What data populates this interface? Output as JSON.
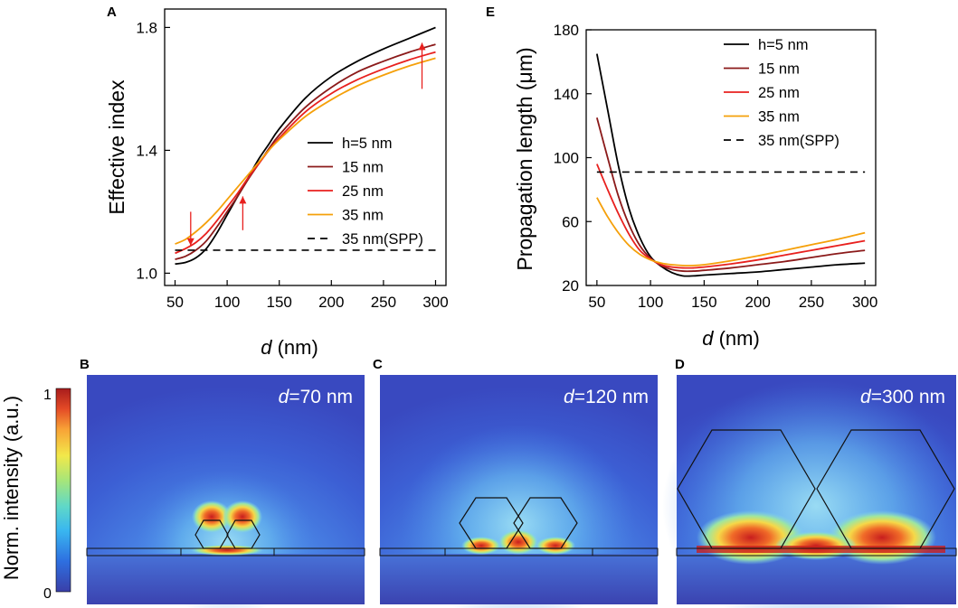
{
  "panel_letters": {
    "a": "A",
    "b": "B",
    "c": "C",
    "d": "D",
    "e": "E"
  },
  "colors": {
    "series": [
      "#000000",
      "#8b1a1a",
      "#e8201e",
      "#f5a00a",
      "#000000"
    ],
    "arrow": "#e8201e",
    "colormap": [
      "#3a3fa8",
      "#2e6fe0",
      "#39b6f0",
      "#5fd8c8",
      "#a8e678",
      "#f2e84a",
      "#f8a236",
      "#e44a26",
      "#a81c1c"
    ]
  },
  "colorbar": {
    "label": "Norm. intensity (a.u.)",
    "max_label": "1",
    "min_label": "0"
  },
  "chart_data": [
    {
      "panel": "A",
      "type": "line",
      "title": "",
      "xlabel_italic": "d",
      "xlabel_rest": " (nm)",
      "ylabel": "Effective index",
      "xlim": [
        40,
        310
      ],
      "ylim": [
        0.96,
        1.86
      ],
      "xticks": [
        50,
        100,
        150,
        200,
        250,
        300
      ],
      "yticks": [
        1.0,
        1.4,
        1.8
      ],
      "ytick_labels": [
        "1.0",
        "1.4",
        "1.8"
      ],
      "legend_position": "center-right",
      "series": [
        {
          "name": "h=5 nm",
          "style": "solid",
          "x": [
            50,
            60,
            70,
            80,
            90,
            100,
            110,
            120,
            130,
            140,
            150,
            175,
            200,
            225,
            250,
            275,
            300
          ],
          "values": [
            1.03,
            1.035,
            1.05,
            1.08,
            1.13,
            1.19,
            1.25,
            1.31,
            1.37,
            1.42,
            1.47,
            1.57,
            1.64,
            1.69,
            1.73,
            1.765,
            1.8
          ]
        },
        {
          "name": "15 nm",
          "style": "solid",
          "x": [
            50,
            60,
            70,
            80,
            90,
            100,
            110,
            120,
            130,
            140,
            150,
            175,
            200,
            225,
            250,
            275,
            300
          ],
          "values": [
            1.045,
            1.055,
            1.075,
            1.105,
            1.15,
            1.2,
            1.25,
            1.305,
            1.355,
            1.405,
            1.45,
            1.54,
            1.605,
            1.655,
            1.69,
            1.72,
            1.745
          ]
        },
        {
          "name": "25 nm",
          "style": "solid",
          "x": [
            50,
            60,
            70,
            80,
            90,
            100,
            110,
            120,
            130,
            140,
            150,
            175,
            200,
            225,
            250,
            275,
            300
          ],
          "values": [
            1.065,
            1.08,
            1.1,
            1.13,
            1.17,
            1.215,
            1.26,
            1.31,
            1.355,
            1.4,
            1.44,
            1.525,
            1.585,
            1.63,
            1.665,
            1.695,
            1.72
          ]
        },
        {
          "name": "35 nm",
          "style": "solid",
          "x": [
            50,
            60,
            70,
            80,
            90,
            100,
            110,
            120,
            130,
            140,
            150,
            175,
            200,
            225,
            250,
            275,
            300
          ],
          "values": [
            1.095,
            1.11,
            1.135,
            1.165,
            1.2,
            1.24,
            1.28,
            1.32,
            1.36,
            1.4,
            1.435,
            1.51,
            1.565,
            1.61,
            1.645,
            1.675,
            1.7
          ]
        },
        {
          "name": "35 nm(SPP)",
          "style": "dashed",
          "x": [
            50,
            300
          ],
          "values": [
            1.075,
            1.075
          ]
        }
      ],
      "annotations": [
        {
          "type": "arrow",
          "direction": "down",
          "x": 65,
          "y_from": 1.2,
          "y_to": 1.09
        },
        {
          "type": "arrow",
          "direction": "up",
          "x": 115,
          "y_from": 1.14,
          "y_to": 1.25
        },
        {
          "type": "arrow",
          "direction": "up",
          "x": 287,
          "y_from": 1.6,
          "y_to": 1.75
        }
      ]
    },
    {
      "panel": "E",
      "type": "line",
      "title": "",
      "xlabel_italic": "d",
      "xlabel_rest": " (nm)",
      "ylabel": "Propagation length (μm)",
      "xlim": [
        40,
        310
      ],
      "ylim": [
        20,
        180
      ],
      "xticks": [
        50,
        100,
        150,
        200,
        250,
        300
      ],
      "yticks": [
        20,
        60,
        100,
        140,
        180
      ],
      "ytick_labels": [
        "20",
        "60",
        "100",
        "140",
        "180"
      ],
      "legend_position": "top-right",
      "series": [
        {
          "name": "h=5 nm",
          "style": "solid",
          "x": [
            50,
            60,
            70,
            80,
            90,
            100,
            110,
            120,
            130,
            140,
            150,
            175,
            200,
            225,
            250,
            275,
            300
          ],
          "values": [
            165,
            130,
            95,
            68,
            50,
            38,
            32,
            28,
            26,
            26,
            26.5,
            27.5,
            28.5,
            30,
            31.5,
            33,
            34
          ]
        },
        {
          "name": "15 nm",
          "style": "solid",
          "x": [
            50,
            60,
            70,
            80,
            90,
            100,
            110,
            120,
            130,
            140,
            150,
            175,
            200,
            225,
            250,
            275,
            300
          ],
          "values": [
            125,
            100,
            76,
            58,
            45,
            37,
            32.5,
            30,
            29,
            29,
            29.5,
            31,
            33,
            35,
            37.5,
            40,
            42
          ]
        },
        {
          "name": "25 nm",
          "style": "solid",
          "x": [
            50,
            60,
            70,
            80,
            90,
            100,
            110,
            120,
            130,
            140,
            150,
            175,
            200,
            225,
            250,
            275,
            300
          ],
          "values": [
            96,
            80,
            65,
            52,
            42,
            36.5,
            33,
            31.5,
            31,
            31,
            31.5,
            33.5,
            36,
            39,
            42,
            45,
            48
          ]
        },
        {
          "name": "35 nm",
          "style": "solid",
          "x": [
            50,
            60,
            70,
            80,
            90,
            100,
            110,
            120,
            130,
            140,
            150,
            175,
            200,
            225,
            250,
            275,
            300
          ],
          "values": [
            75,
            63,
            53,
            45,
            39.5,
            36,
            34,
            33,
            32.5,
            32.5,
            33,
            35.5,
            38.5,
            42,
            45.5,
            49,
            53
          ]
        },
        {
          "name": "35 nm(SPP)",
          "style": "dashed",
          "x": [
            50,
            300
          ],
          "values": [
            91,
            91
          ]
        }
      ]
    }
  ],
  "field_panels": [
    {
      "letter": "B",
      "d_italic": "d",
      "d_rest": "=70 nm",
      "d_value": 70
    },
    {
      "letter": "C",
      "d_italic": "d",
      "d_rest": "=120 nm",
      "d_value": 120
    },
    {
      "letter": "D",
      "d_italic": "d",
      "d_rest": "=300 nm",
      "d_value": 300
    }
  ]
}
